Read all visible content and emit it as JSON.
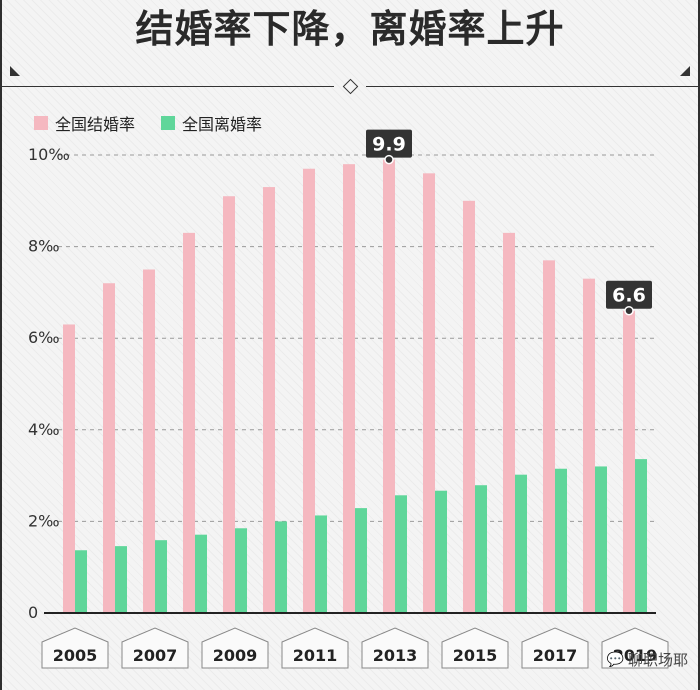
{
  "header": {
    "title": "结婚率下降，离婚率上升"
  },
  "legend": [
    {
      "label": "全国结婚率",
      "color": "#f5b8c0"
    },
    {
      "label": "全国离婚率",
      "color": "#5fd69a"
    }
  ],
  "watermark": {
    "text": "聊职场耶"
  },
  "chart_data": {
    "type": "bar",
    "categories": [
      "2005",
      "2006",
      "2007",
      "2008",
      "2009",
      "2010",
      "2011",
      "2012",
      "2013",
      "2014",
      "2015",
      "2016",
      "2017",
      "2018",
      "2019"
    ],
    "series": [
      {
        "name": "全国结婚率",
        "color": "#f5b8c0",
        "values": [
          6.3,
          7.2,
          7.5,
          8.3,
          9.1,
          9.3,
          9.7,
          9.8,
          9.9,
          9.6,
          9.0,
          8.3,
          7.7,
          7.3,
          6.6
        ]
      },
      {
        "name": "全国离婚率",
        "color": "#5fd69a",
        "values": [
          1.37,
          1.46,
          1.59,
          1.71,
          1.85,
          2.0,
          2.13,
          2.29,
          2.57,
          2.67,
          2.79,
          3.02,
          3.15,
          3.2,
          3.36
        ]
      }
    ],
    "y_ticks": [
      "0",
      "2‰",
      "4‰",
      "6‰",
      "8‰",
      "10‰"
    ],
    "y_tick_values": [
      0,
      2,
      4,
      6,
      8,
      10
    ],
    "ylim": [
      0,
      10
    ],
    "x_tick_labels": [
      "2005",
      "2007",
      "2009",
      "2011",
      "2013",
      "2015",
      "2017",
      "2019"
    ],
    "callouts": [
      {
        "category": "2013",
        "value": 9.9,
        "label": "9.9"
      },
      {
        "category": "2019",
        "value": 6.6,
        "label": "6.6"
      }
    ],
    "grid": true
  }
}
